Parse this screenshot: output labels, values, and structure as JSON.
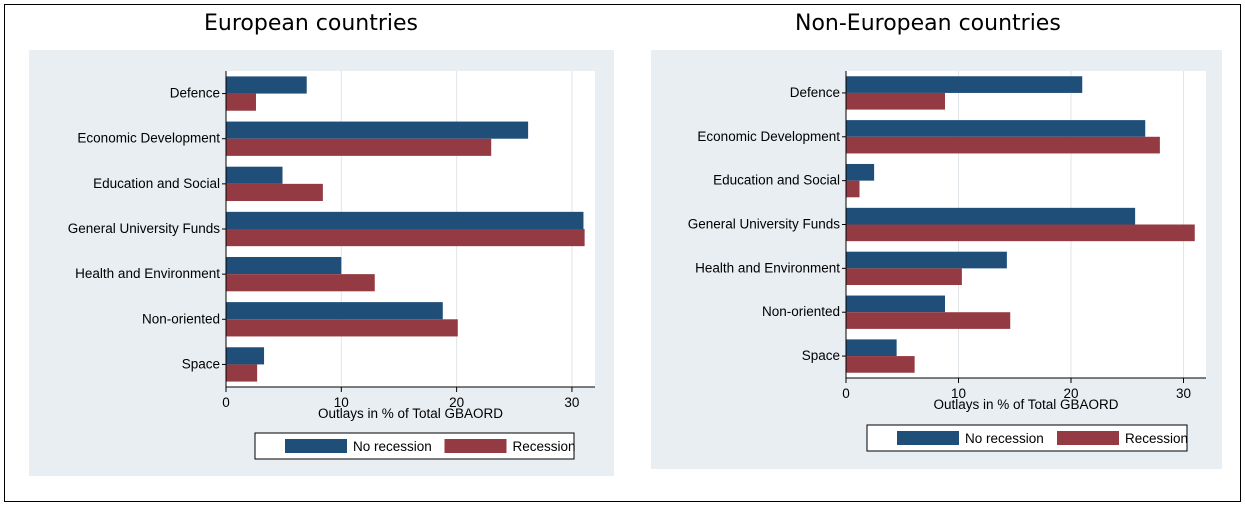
{
  "colors": {
    "no_recession": "#1f4e79",
    "recession": "#943a42",
    "panel_bg": "#e8eef2"
  },
  "chart_data": [
    {
      "type": "bar",
      "orientation": "horizontal",
      "title": "European countries",
      "xlabel": "Outlays in % of Total GBAORD",
      "xlim": [
        0,
        32
      ],
      "xticks": [
        0,
        10,
        20,
        30
      ],
      "grid": true,
      "legend": "bottom",
      "categories": [
        "Defence",
        "Economic Development",
        "Education and Social",
        "General University Funds",
        "Health and Environment",
        "Non-oriented",
        "Space"
      ],
      "series": [
        {
          "name": "No recession",
          "values": [
            7.0,
            26.2,
            4.9,
            31.0,
            10.0,
            18.8,
            3.3
          ]
        },
        {
          "name": "Recession",
          "values": [
            2.6,
            23.0,
            8.4,
            31.1,
            12.9,
            20.1,
            2.7
          ]
        }
      ]
    },
    {
      "type": "bar",
      "orientation": "horizontal",
      "title": "Non-European countries",
      "xlabel": "Outlays in % of Total GBAORD",
      "xlim": [
        0,
        32
      ],
      "xticks": [
        0,
        10,
        20,
        30
      ],
      "grid": true,
      "legend": "bottom",
      "categories": [
        "Defence",
        "Economic Development",
        "Education and Social",
        "General University Funds",
        "Health and Environment",
        "Non-oriented",
        "Space"
      ],
      "series": [
        {
          "name": "No recession",
          "values": [
            21.0,
            26.6,
            2.5,
            25.7,
            14.3,
            8.8,
            4.5
          ]
        },
        {
          "name": "Recession",
          "values": [
            8.8,
            27.9,
            1.2,
            31.0,
            10.3,
            14.6,
            6.1
          ]
        }
      ]
    }
  ]
}
